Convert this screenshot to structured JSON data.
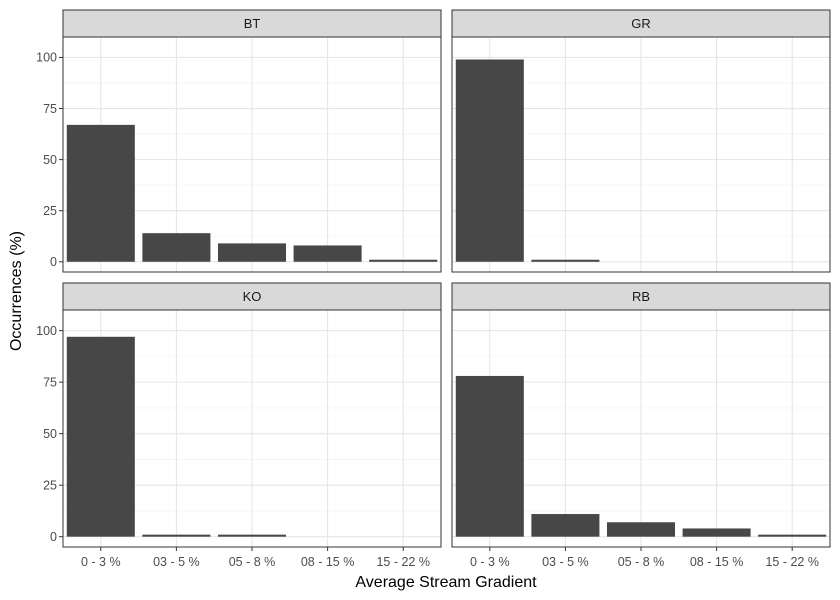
{
  "chart_data": {
    "type": "bar",
    "xlabel": "Average Stream Gradient",
    "ylabel": "Occurrences (%)",
    "ylim": [
      -5,
      110
    ],
    "yticks": [
      0,
      25,
      50,
      75,
      100
    ],
    "grid": true,
    "categories": [
      "0 - 3 %",
      "03 - 5 %",
      "05 - 8 %",
      "08 - 15 %",
      "15 - 22 %"
    ],
    "bar_color": "#474747",
    "strip_color": "#d9d9d9",
    "panels": [
      {
        "name": "BT",
        "values": [
          67,
          14,
          9,
          8,
          1
        ]
      },
      {
        "name": "GR",
        "values": [
          99,
          1,
          0,
          0,
          0
        ]
      },
      {
        "name": "KO",
        "values": [
          97,
          1,
          1,
          0,
          0
        ]
      },
      {
        "name": "RB",
        "values": [
          78,
          11,
          7,
          4,
          1
        ]
      }
    ]
  }
}
